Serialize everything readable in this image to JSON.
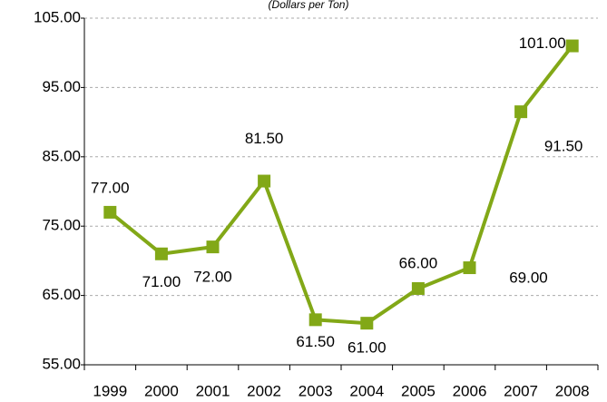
{
  "chart_data": {
    "type": "line",
    "subtitle": "(Dollars per Ton)",
    "categories": [
      "1999",
      "2000",
      "2001",
      "2002",
      "2003",
      "2004",
      "2005",
      "2006",
      "2007",
      "2008"
    ],
    "values": [
      77,
      71,
      72,
      81.5,
      61.5,
      61,
      66,
      69,
      91.5,
      101
    ],
    "value_labels": [
      "77.00",
      "71.00",
      "72.00",
      "81.50",
      "61.50",
      "61.00",
      "66.00",
      "69.00",
      "91.50",
      "101.00"
    ],
    "color": "#82a817",
    "ylim": [
      55,
      105
    ],
    "yticks": [
      {
        "value": 55,
        "label": "55.00"
      },
      {
        "value": 65,
        "label": "65.00"
      },
      {
        "value": 75,
        "label": "75.00"
      },
      {
        "value": 85,
        "label": "85.00"
      },
      {
        "value": 95,
        "label": "95.00"
      },
      {
        "value": 105,
        "label": "105.00"
      }
    ],
    "grid": true
  }
}
